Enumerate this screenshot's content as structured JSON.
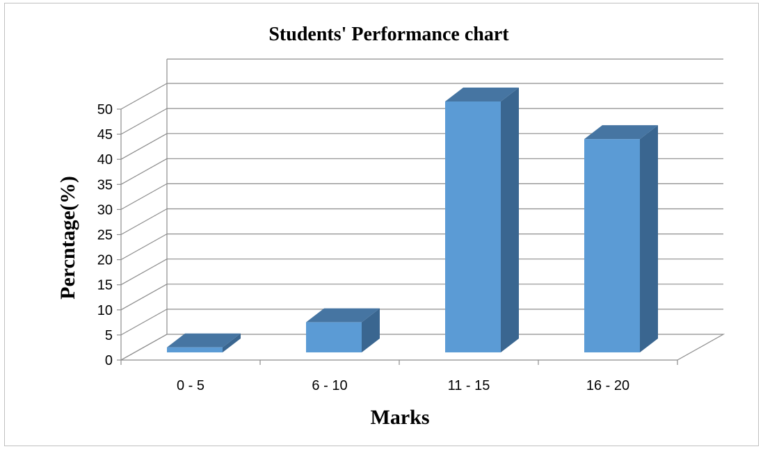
{
  "chart_data": {
    "type": "bar",
    "title": "Students' Performance chart",
    "xlabel": "Marks",
    "ylabel": "Percntage(%)",
    "categories": [
      "0 - 5",
      "6 - 10",
      "11 - 15",
      "16 - 20"
    ],
    "values": [
      1,
      6,
      50,
      42.5
    ],
    "ylim": [
      0,
      50
    ],
    "ytick_step": 5,
    "grid": true,
    "legend": "none",
    "three_d": true,
    "colors": {
      "bar_front": "#5b9bd5",
      "bar_side": "#3a6690",
      "bar_top": "#4675a2",
      "grid": "#8c8c8c"
    }
  }
}
